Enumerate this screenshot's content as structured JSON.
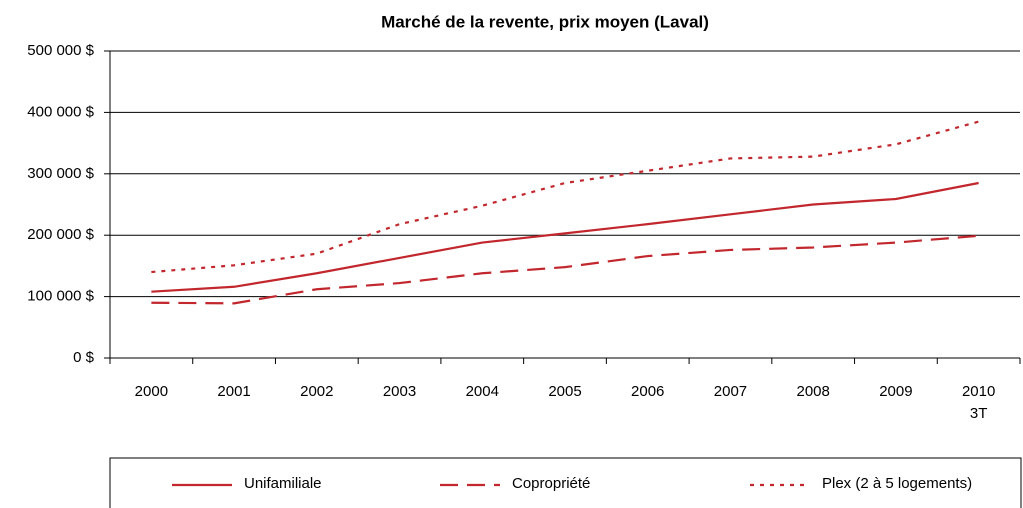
{
  "chart_data": {
    "type": "line",
    "title": "Marché de la revente, prix moyen (Laval)",
    "categories": [
      "2000",
      "2001",
      "2002",
      "2003",
      "2004",
      "2005",
      "2006",
      "2007",
      "2008",
      "2009",
      "2010 3T"
    ],
    "series": [
      {
        "name": "Unifamiliale",
        "color": "#c1272d",
        "dash": "solid",
        "values": [
          108000,
          116000,
          138000,
          163000,
          188000,
          203000,
          218000,
          234000,
          250000,
          259000,
          285000
        ]
      },
      {
        "name": "Copropriété",
        "color": "#c1272d",
        "dash": "dashed",
        "values": [
          90000,
          89000,
          112000,
          122000,
          138000,
          148000,
          166000,
          176000,
          180000,
          188000,
          199000
        ]
      },
      {
        "name": "Plex (2 à 5 logements)",
        "color": "#c1272d",
        "dash": "dotted",
        "values": [
          140000,
          151000,
          170000,
          218000,
          248000,
          285000,
          305000,
          325000,
          328000,
          348000,
          385000
        ]
      }
    ],
    "ylim": [
      0,
      500000
    ],
    "yticks": [
      {
        "value": 0,
        "label": "0 $"
      },
      {
        "value": 100000,
        "label": "100 000 $"
      },
      {
        "value": 200000,
        "label": "200 000 $"
      },
      {
        "value": 300000,
        "label": "300 000 $"
      },
      {
        "value": 400000,
        "label": "400 000 $"
      },
      {
        "value": 500000,
        "label": "500 000 $"
      }
    ],
    "grid": true,
    "legend": "bottom"
  }
}
